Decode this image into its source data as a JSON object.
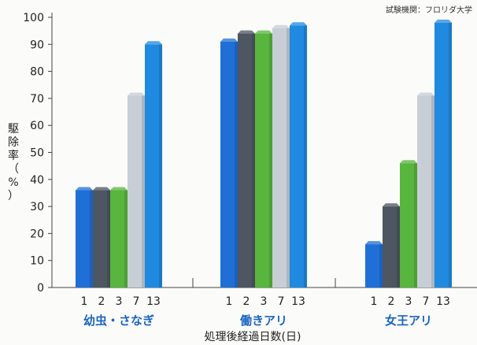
{
  "chart_data": {
    "type": "bar",
    "source_note": "試験機関：フロリダ大学",
    "ylabel_chars": [
      "駆",
      "除",
      "率",
      "（",
      "%",
      "）"
    ],
    "xlabel": "処理後経過日数(日)",
    "ylim": [
      0,
      100
    ],
    "yticks": [
      0,
      10,
      20,
      30,
      40,
      50,
      60,
      70,
      80,
      90,
      100
    ],
    "series_labels": [
      "1",
      "2",
      "3",
      "7",
      "13"
    ],
    "series_colors": [
      "#1f6fd6",
      "#4d5661",
      "#58b53d",
      "#c8ced6",
      "#1f8ae0"
    ],
    "grid": false,
    "groups": [
      {
        "name": "幼虫・さなぎ",
        "values": [
          36,
          36,
          36,
          71,
          90
        ]
      },
      {
        "name": "働きアリ",
        "values": [
          91,
          94,
          94,
          96,
          97
        ]
      },
      {
        "name": "女王アリ",
        "values": [
          16,
          30,
          46,
          71,
          98
        ]
      }
    ]
  }
}
